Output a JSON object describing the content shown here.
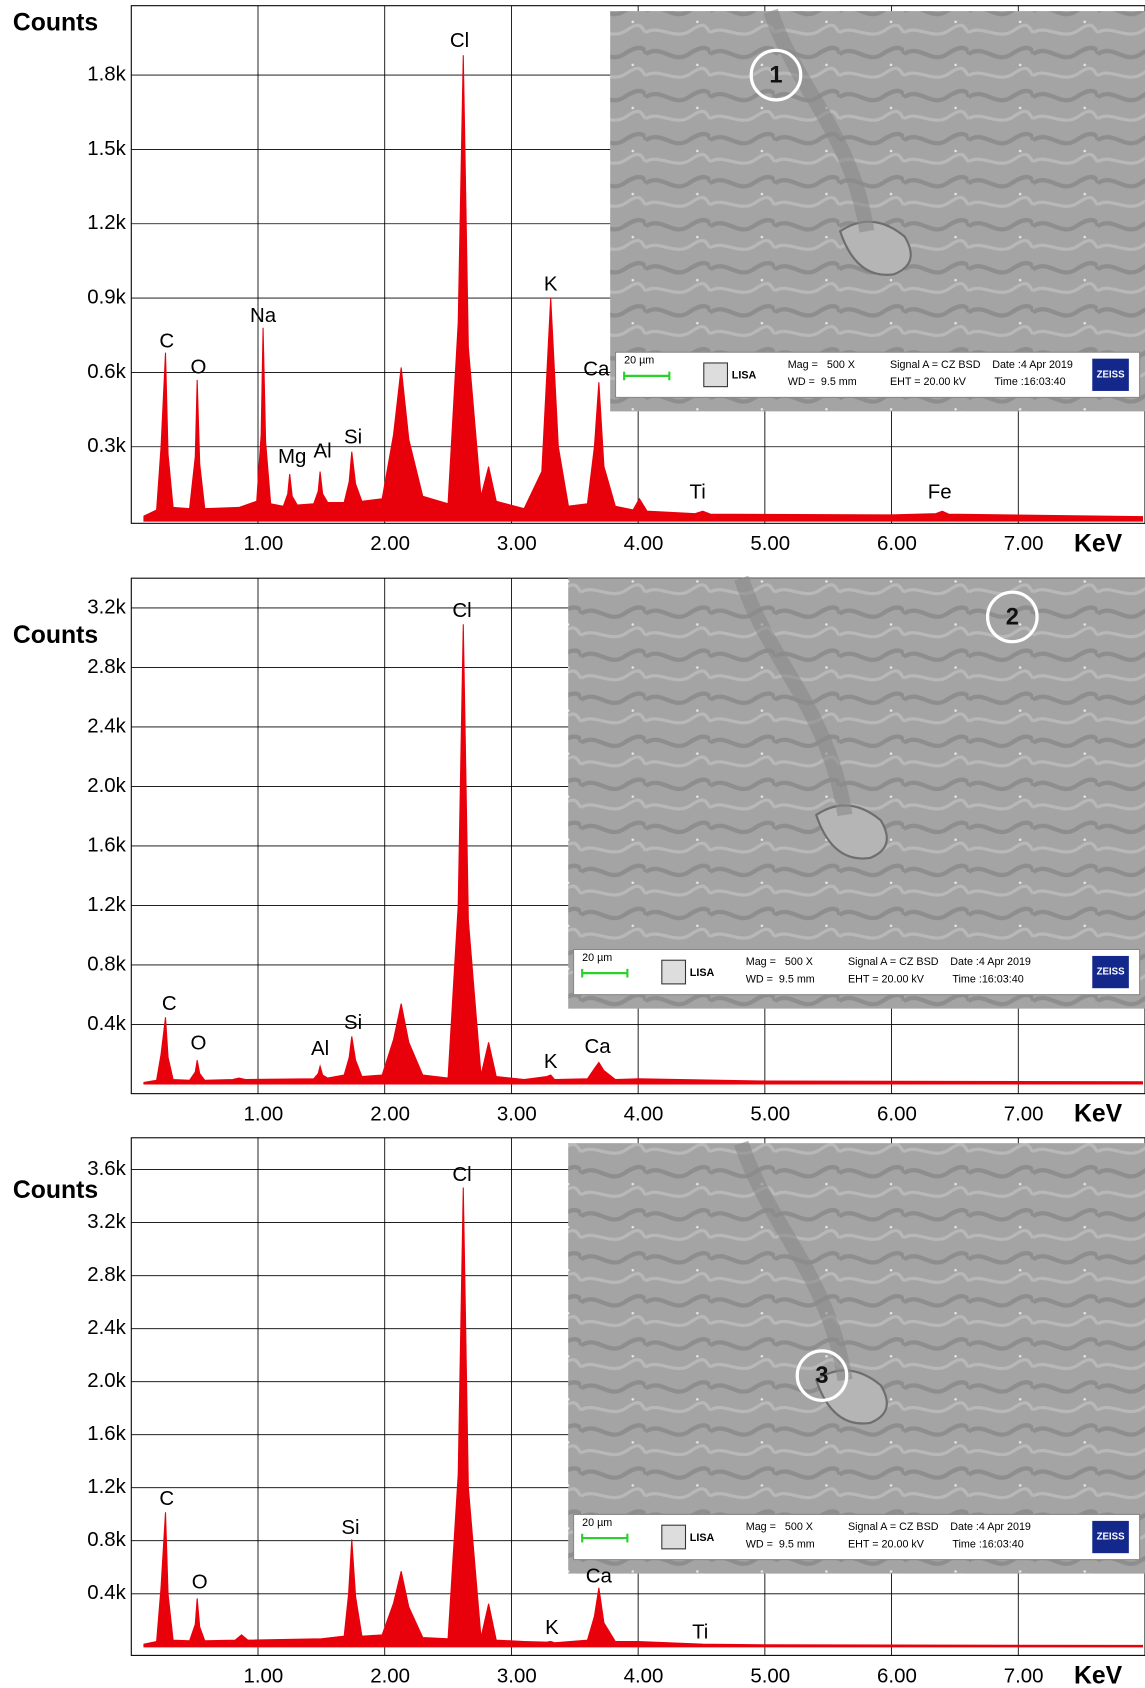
{
  "chart_data": [
    {
      "type": "area",
      "color": "#e8000b",
      "x_label": "KeV",
      "y_label": "Counts",
      "grid": true,
      "xlim": [
        0,
        8
      ],
      "ylim": [
        -9,
        2080
      ],
      "xticks": [
        {
          "value": 1,
          "label": "1.00"
        },
        {
          "value": 2,
          "label": "2.00"
        },
        {
          "value": 3,
          "label": "3.00"
        },
        {
          "value": 4,
          "label": "4.00"
        },
        {
          "value": 5,
          "label": "5.00"
        },
        {
          "value": 6,
          "label": "6.00"
        },
        {
          "value": 7,
          "label": "7.00"
        }
      ],
      "yticks": [
        {
          "value": 300,
          "label": "0.3k"
        },
        {
          "value": 600,
          "label": "0.6k"
        },
        {
          "value": 900,
          "label": "0.9k"
        },
        {
          "value": 1200,
          "label": "1.2k"
        },
        {
          "value": 1500,
          "label": "1.5k"
        },
        {
          "value": 1800,
          "label": "1.8k"
        }
      ],
      "x": [
        0.1,
        0.2,
        0.235,
        0.27,
        0.29,
        0.33,
        0.46,
        0.505,
        0.52,
        0.54,
        0.58,
        0.85,
        0.99,
        1.025,
        1.04,
        1.06,
        1.1,
        1.2,
        1.235,
        1.25,
        1.27,
        1.31,
        1.44,
        1.475,
        1.49,
        1.51,
        1.55,
        1.68,
        1.72,
        1.74,
        1.77,
        1.82,
        1.98,
        2.07,
        2.13,
        2.19,
        2.3,
        2.5,
        2.58,
        2.62,
        2.66,
        2.76,
        2.82,
        2.88,
        3.1,
        3.24,
        3.31,
        3.37,
        3.45,
        3.6,
        3.655,
        3.69,
        3.73,
        3.82,
        3.96,
        4.01,
        4.07,
        4.45,
        4.51,
        4.57,
        6.0,
        6.35,
        6.4,
        6.45,
        7.98
      ],
      "values": [
        20,
        45,
        300,
        680,
        270,
        55,
        50,
        260,
        570,
        230,
        50,
        55,
        80,
        350,
        780,
        320,
        70,
        60,
        110,
        190,
        100,
        65,
        70,
        120,
        200,
        110,
        75,
        75,
        160,
        280,
        150,
        80,
        90,
        350,
        620,
        330,
        100,
        70,
        800,
        1880,
        700,
        100,
        220,
        80,
        50,
        200,
        900,
        300,
        60,
        70,
        300,
        560,
        220,
        60,
        45,
        90,
        40,
        30,
        40,
        28,
        25,
        30,
        40,
        28,
        18
      ],
      "annotations": [
        {
          "text": "C",
          "x": 0.28,
          "y": 722
        },
        {
          "text": "O",
          "x": 0.53,
          "y": 617
        },
        {
          "text": "Na",
          "x": 1.04,
          "y": 826
        },
        {
          "text": "Mg",
          "x": 1.27,
          "y": 257
        },
        {
          "text": "Al",
          "x": 1.51,
          "y": 278
        },
        {
          "text": "Si",
          "x": 1.75,
          "y": 335
        },
        {
          "text": "Cl",
          "x": 2.59,
          "y": 1935
        },
        {
          "text": "K",
          "x": 3.31,
          "y": 952
        },
        {
          "text": "Ca",
          "x": 3.67,
          "y": 609
        },
        {
          "text": "Ti",
          "x": 4.47,
          "y": 113
        },
        {
          "text": "Fe",
          "x": 6.38,
          "y": 113
        }
      ],
      "inset": {
        "marker": "1",
        "scale_bar": "20 µm",
        "logo": "LISA",
        "mag": "Mag =   500 X",
        "wd": "WD =  9.5 mm",
        "signal": "Signal A = CZ BSD",
        "eht": "EHT = 20.00 kV",
        "date": "Date :4 Apr 2019",
        "time": "Time :16:03:40",
        "brand": "ZEISS"
      }
    },
    {
      "type": "area",
      "color": "#e8000b",
      "x_label": "KeV",
      "y_label": "Counts",
      "grid": true,
      "xlim": [
        0,
        8
      ],
      "ylim": [
        -65,
        3400
      ],
      "xticks": [
        {
          "value": 1,
          "label": "1.00"
        },
        {
          "value": 2,
          "label": "2.00"
        },
        {
          "value": 3,
          "label": "3.00"
        },
        {
          "value": 4,
          "label": "4.00"
        },
        {
          "value": 5,
          "label": "5.00"
        },
        {
          "value": 6,
          "label": "6.00"
        },
        {
          "value": 7,
          "label": "7.00"
        }
      ],
      "yticks": [
        {
          "value": 400,
          "label": "0.4k"
        },
        {
          "value": 800,
          "label": "0.8k"
        },
        {
          "value": 1200,
          "label": "1.2k"
        },
        {
          "value": 1600,
          "label": "1.6k"
        },
        {
          "value": 2000,
          "label": "2.0k"
        },
        {
          "value": 2400,
          "label": "2.4k"
        },
        {
          "value": 2800,
          "label": "2.8k"
        },
        {
          "value": 3200,
          "label": "3.2k"
        }
      ],
      "x": [
        0.1,
        0.2,
        0.235,
        0.27,
        0.29,
        0.33,
        0.46,
        0.505,
        0.52,
        0.54,
        0.58,
        0.8,
        0.85,
        0.9,
        1.44,
        1.475,
        1.49,
        1.51,
        1.55,
        1.68,
        1.72,
        1.74,
        1.77,
        1.82,
        1.98,
        2.07,
        2.13,
        2.19,
        2.3,
        2.5,
        2.58,
        2.62,
        2.66,
        2.76,
        2.82,
        2.88,
        3.1,
        3.28,
        3.31,
        3.34,
        3.6,
        3.66,
        3.69,
        3.73,
        3.82,
        4.0,
        5.0,
        7.98
      ],
      "values": [
        10,
        25,
        200,
        448,
        180,
        30,
        25,
        80,
        160,
        70,
        25,
        30,
        40,
        30,
        35,
        70,
        120,
        60,
        40,
        60,
        180,
        320,
        160,
        50,
        60,
        300,
        540,
        280,
        60,
        40,
        1200,
        3090,
        1100,
        60,
        280,
        50,
        30,
        50,
        60,
        30,
        35,
        110,
        145,
        90,
        30,
        35,
        20,
        15
      ],
      "annotations": [
        {
          "text": "C",
          "x": 0.3,
          "y": 535
        },
        {
          "text": "O",
          "x": 0.53,
          "y": 268
        },
        {
          "text": "Al",
          "x": 1.49,
          "y": 231
        },
        {
          "text": "Si",
          "x": 1.75,
          "y": 405
        },
        {
          "text": "Cl",
          "x": 2.61,
          "y": 3175
        },
        {
          "text": "K",
          "x": 3.31,
          "y": 145
        },
        {
          "text": "Ca",
          "x": 3.68,
          "y": 246
        }
      ],
      "inset": {
        "marker": "2",
        "scale_bar": "20 µm",
        "logo": "LISA",
        "mag": "Mag =   500 X",
        "wd": "WD =  9.5 mm",
        "signal": "Signal A = CZ BSD",
        "eht": "EHT = 20.00 kV",
        "date": "Date :4 Apr 2019",
        "time": "Time :16:03:40",
        "brand": "ZEISS"
      }
    },
    {
      "type": "area",
      "color": "#e8000b",
      "x_label": "KeV",
      "y_label": "Counts",
      "grid": true,
      "xlim": [
        0,
        8
      ],
      "ylim": [
        -65,
        3840
      ],
      "xticks": [
        {
          "value": 1,
          "label": "1.00"
        },
        {
          "value": 2,
          "label": "2.00"
        },
        {
          "value": 3,
          "label": "3.00"
        },
        {
          "value": 4,
          "label": "4.00"
        },
        {
          "value": 5,
          "label": "5.00"
        },
        {
          "value": 6,
          "label": "6.00"
        },
        {
          "value": 7,
          "label": "7.00"
        }
      ],
      "yticks": [
        {
          "value": 400,
          "label": "0.4k"
        },
        {
          "value": 800,
          "label": "0.8k"
        },
        {
          "value": 1200,
          "label": "1.2k"
        },
        {
          "value": 1600,
          "label": "1.6k"
        },
        {
          "value": 2000,
          "label": "2.0k"
        },
        {
          "value": 2400,
          "label": "2.4k"
        },
        {
          "value": 2800,
          "label": "2.8k"
        },
        {
          "value": 3200,
          "label": "3.2k"
        },
        {
          "value": 3600,
          "label": "3.6k"
        }
      ],
      "x": [
        0.1,
        0.2,
        0.235,
        0.27,
        0.29,
        0.33,
        0.46,
        0.505,
        0.52,
        0.54,
        0.58,
        0.82,
        0.87,
        0.92,
        1.5,
        1.68,
        1.715,
        1.74,
        1.77,
        1.82,
        1.98,
        2.07,
        2.13,
        2.19,
        2.3,
        2.5,
        2.58,
        2.62,
        2.66,
        2.76,
        2.82,
        2.88,
        3.1,
        3.28,
        3.31,
        3.34,
        3.6,
        3.655,
        3.69,
        3.73,
        3.82,
        4.0,
        4.51,
        5.0,
        7.98
      ],
      "values": [
        20,
        40,
        450,
        1015,
        400,
        50,
        45,
        170,
        365,
        150,
        45,
        50,
        90,
        50,
        60,
        80,
        400,
        810,
        380,
        80,
        90,
        330,
        570,
        300,
        70,
        60,
        1300,
        3465,
        1200,
        70,
        325,
        50,
        40,
        35,
        40,
        30,
        50,
        230,
        445,
        180,
        40,
        40,
        20,
        15,
        10
      ],
      "annotations": [
        {
          "text": "C",
          "x": 0.28,
          "y": 1112
        },
        {
          "text": "O",
          "x": 0.54,
          "y": 479
        },
        {
          "text": "Si",
          "x": 1.73,
          "y": 892
        },
        {
          "text": "Cl",
          "x": 2.61,
          "y": 3554
        },
        {
          "text": "K",
          "x": 3.32,
          "y": 138
        },
        {
          "text": "Ca",
          "x": 3.69,
          "y": 527
        },
        {
          "text": "Ti",
          "x": 4.49,
          "y": 105
        }
      ],
      "inset": {
        "marker": "3",
        "scale_bar": "20 µm",
        "logo": "LISA",
        "mag": "Mag =   500 X",
        "wd": "WD =  9.5 mm",
        "signal": "Signal A = CZ BSD",
        "eht": "EHT = 20.00 kV",
        "date": "Date :4 Apr 2019",
        "time": "Time :16:03:40",
        "brand": "ZEISS"
      }
    }
  ]
}
